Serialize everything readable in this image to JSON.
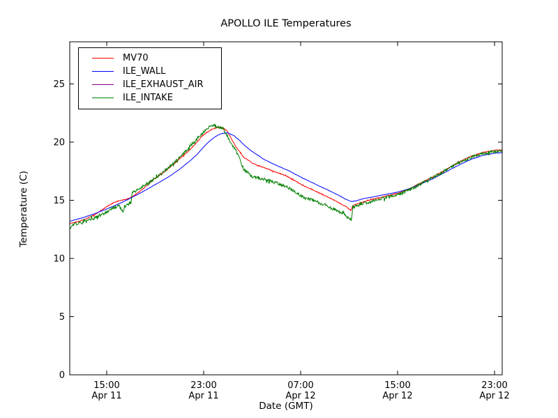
{
  "title": "APOLLO ILE Temperatures",
  "chart_data": {
    "type": "line",
    "title": "APOLLO ILE Temperatures",
    "xlabel": "Date (GMT)",
    "ylabel": "Temperature (C)",
    "grid": false,
    "legend_position": "upper left",
    "x_unit": "hours since Apr 11 00:00 GMT",
    "xlim": [
      11.949,
      47.632
    ],
    "ylim": [
      0,
      28.623
    ],
    "y_ticks": [
      0,
      5,
      10,
      15,
      20,
      25
    ],
    "x_ticks": [
      {
        "hour": 15,
        "time": "15:00",
        "date": "Apr 11"
      },
      {
        "hour": 23,
        "time": "23:00",
        "date": "Apr 11"
      },
      {
        "hour": 31,
        "time": "07:00",
        "date": "Apr 12"
      },
      {
        "hour": 39,
        "time": "15:00",
        "date": "Apr 12"
      },
      {
        "hour": 47,
        "time": "23:00",
        "date": "Apr 12"
      }
    ],
    "noise_seed": 1337,
    "sample_step_hours": 0.04,
    "series": [
      {
        "name": "MV70",
        "color": "#ff0000",
        "noise": 0.04,
        "keypoints": [
          [
            11.95,
            13.0
          ],
          [
            12.5,
            13.15
          ],
          [
            13,
            13.3
          ],
          [
            13.5,
            13.5
          ],
          [
            14,
            13.75
          ],
          [
            14.5,
            14.1
          ],
          [
            15,
            14.45
          ],
          [
            15.5,
            14.75
          ],
          [
            16,
            14.95
          ],
          [
            16.5,
            15.05
          ],
          [
            17,
            15.25
          ],
          [
            17.5,
            15.6
          ],
          [
            18,
            16.0
          ],
          [
            18.5,
            16.45
          ],
          [
            19,
            16.9
          ],
          [
            19.5,
            17.25
          ],
          [
            20,
            17.65
          ],
          [
            20.5,
            18.1
          ],
          [
            21,
            18.55
          ],
          [
            21.5,
            19.0
          ],
          [
            22,
            19.5
          ],
          [
            22.5,
            20.05
          ],
          [
            23,
            20.65
          ],
          [
            23.5,
            21.0
          ],
          [
            23.9,
            21.2
          ],
          [
            24.5,
            21.25
          ],
          [
            24.9,
            21.0
          ],
          [
            25.6,
            19.7
          ],
          [
            26.3,
            18.7
          ],
          [
            27,
            18.2
          ],
          [
            28,
            17.8
          ],
          [
            29,
            17.4
          ],
          [
            29.8,
            17.1
          ],
          [
            31,
            16.4
          ],
          [
            32,
            15.9
          ],
          [
            33,
            15.4
          ],
          [
            34,
            14.9
          ],
          [
            34.8,
            14.4
          ],
          [
            35.15,
            14.15
          ],
          [
            35.3,
            14.55
          ],
          [
            36,
            14.8
          ],
          [
            37,
            15.1
          ],
          [
            38,
            15.35
          ],
          [
            39,
            15.6
          ],
          [
            40,
            16.0
          ],
          [
            41,
            16.55
          ],
          [
            42,
            17.05
          ],
          [
            43,
            17.65
          ],
          [
            44,
            18.25
          ],
          [
            45,
            18.75
          ],
          [
            46,
            19.1
          ],
          [
            47,
            19.3
          ],
          [
            47.64,
            19.35
          ]
        ]
      },
      {
        "name": "ILE_WALL",
        "color": "#0000ff",
        "noise": 0.015,
        "keypoints": [
          [
            11.95,
            13.2
          ],
          [
            13,
            13.5
          ],
          [
            14,
            13.85
          ],
          [
            15,
            14.25
          ],
          [
            16,
            14.7
          ],
          [
            17,
            15.2
          ],
          [
            18,
            15.75
          ],
          [
            19,
            16.35
          ],
          [
            20,
            16.95
          ],
          [
            21,
            17.65
          ],
          [
            22,
            18.5
          ],
          [
            22.5,
            19.0
          ],
          [
            23,
            19.6
          ],
          [
            23.5,
            20.1
          ],
          [
            24,
            20.5
          ],
          [
            24.5,
            20.75
          ],
          [
            25,
            20.8
          ],
          [
            25.5,
            20.55
          ],
          [
            26,
            20.1
          ],
          [
            26.5,
            19.6
          ],
          [
            27,
            19.2
          ],
          [
            28,
            18.5
          ],
          [
            29,
            18.0
          ],
          [
            30,
            17.55
          ],
          [
            31,
            17.0
          ],
          [
            32,
            16.5
          ],
          [
            33,
            16.0
          ],
          [
            34,
            15.5
          ],
          [
            34.7,
            15.1
          ],
          [
            35.2,
            14.9
          ],
          [
            35.6,
            14.95
          ],
          [
            36,
            15.1
          ],
          [
            37,
            15.3
          ],
          [
            38,
            15.5
          ],
          [
            39,
            15.7
          ],
          [
            40,
            16.0
          ],
          [
            41,
            16.45
          ],
          [
            42,
            16.9
          ],
          [
            43,
            17.45
          ],
          [
            44,
            18.0
          ],
          [
            45,
            18.5
          ],
          [
            46,
            18.85
          ],
          [
            47,
            19.05
          ],
          [
            47.64,
            19.1
          ]
        ]
      },
      {
        "name": "ILE_EXHAUST_AIR",
        "color": "#800080",
        "noise": 0,
        "keypoints": [
          [
            11.95,
            0.0
          ],
          [
            47.64,
            0.0
          ]
        ]
      },
      {
        "name": "ILE_INTAKE",
        "color": "#007f00",
        "noise": 0.13,
        "keypoints": [
          [
            11.95,
            12.4
          ],
          [
            12.2,
            12.9
          ],
          [
            12.6,
            13.0
          ],
          [
            13,
            13.1
          ],
          [
            13.5,
            13.3
          ],
          [
            14,
            13.5
          ],
          [
            14.5,
            13.75
          ],
          [
            15,
            14.0
          ],
          [
            15.5,
            14.3
          ],
          [
            16,
            14.55
          ],
          [
            16.25,
            14.1
          ],
          [
            16.35,
            13.9
          ],
          [
            16.5,
            14.4
          ],
          [
            16.8,
            14.7
          ],
          [
            17.0,
            14.8
          ],
          [
            17.1,
            15.6
          ],
          [
            17.5,
            15.9
          ],
          [
            18,
            16.2
          ],
          [
            18.5,
            16.55
          ],
          [
            19,
            16.9
          ],
          [
            19.5,
            17.25
          ],
          [
            20,
            17.7
          ],
          [
            20.5,
            18.2
          ],
          [
            21,
            18.7
          ],
          [
            21.5,
            19.2
          ],
          [
            22,
            19.8
          ],
          [
            22.5,
            20.3
          ],
          [
            23,
            20.9
          ],
          [
            23.4,
            21.3
          ],
          [
            23.8,
            21.45
          ],
          [
            24.2,
            21.3
          ],
          [
            24.6,
            21.2
          ],
          [
            24.8,
            20.8
          ],
          [
            25.2,
            20.0
          ],
          [
            25.6,
            19.4
          ],
          [
            26,
            18.5
          ],
          [
            26.3,
            17.7
          ],
          [
            26.9,
            17.1
          ],
          [
            27.5,
            16.9
          ],
          [
            28,
            16.8
          ],
          [
            29,
            16.5
          ],
          [
            29.8,
            16.2
          ],
          [
            30.5,
            15.8
          ],
          [
            31,
            15.4
          ],
          [
            32,
            15.0
          ],
          [
            33,
            14.6
          ],
          [
            34,
            14.1
          ],
          [
            34.7,
            13.7
          ],
          [
            35.0,
            13.45
          ],
          [
            35.2,
            13.3
          ],
          [
            35.3,
            14.35
          ],
          [
            35.6,
            14.5
          ],
          [
            36,
            14.65
          ],
          [
            37,
            14.95
          ],
          [
            38,
            15.25
          ],
          [
            39,
            15.5
          ],
          [
            40,
            15.9
          ],
          [
            41,
            16.45
          ],
          [
            42,
            17.0
          ],
          [
            43,
            17.6
          ],
          [
            44,
            18.2
          ],
          [
            45,
            18.65
          ],
          [
            46,
            19.0
          ],
          [
            47,
            19.2
          ],
          [
            47.64,
            19.2
          ]
        ]
      }
    ]
  }
}
